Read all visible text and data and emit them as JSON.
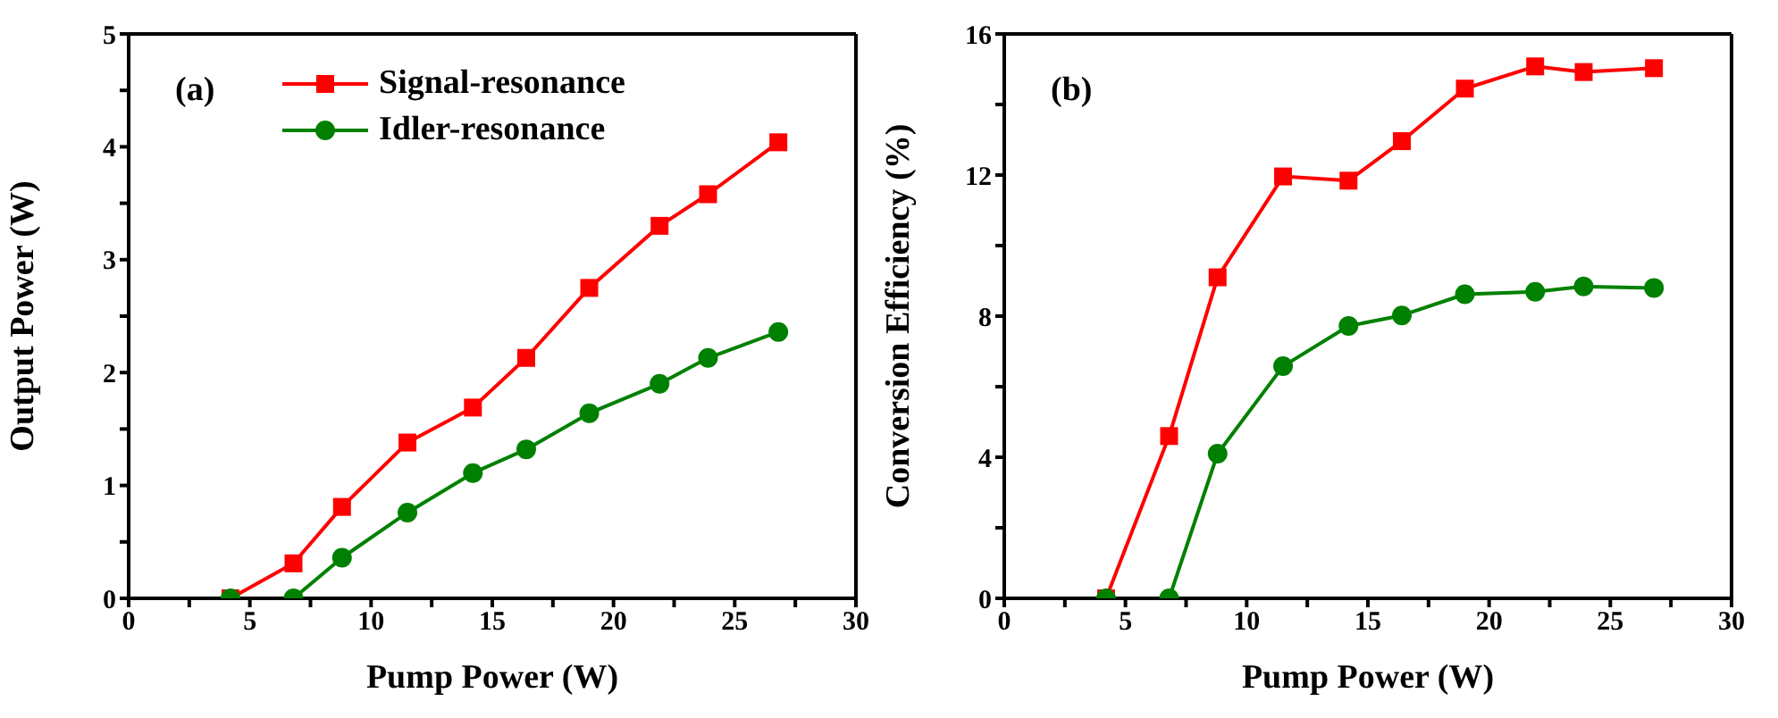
{
  "chart_data": [
    {
      "type": "line",
      "annotations": [
        "(a)"
      ],
      "xlabel": "Pump Power (W)",
      "ylabel": "Output Power (W)",
      "xlim": [
        0,
        30
      ],
      "ylim": [
        0,
        5
      ],
      "xticks": [
        0,
        {
          "value": 2.5,
          "label": null
        },
        5,
        {
          "value": 7.5,
          "label": null
        },
        10,
        {
          "value": 12.5,
          "label": null
        },
        15,
        {
          "value": 17.5,
          "label": null
        },
        20,
        {
          "value": 22.5,
          "label": null
        },
        25,
        {
          "value": 27.5,
          "label": null
        },
        30
      ],
      "yticks": [
        0,
        {
          "value": 0.5,
          "label": null
        },
        1,
        {
          "value": 1.5,
          "label": null
        },
        2,
        {
          "value": 2.5,
          "label": null
        },
        3,
        {
          "value": 3.5,
          "label": null
        },
        4,
        {
          "value": 4.5,
          "label": null
        },
        5
      ],
      "x": [
        4.2,
        6.8,
        8.8,
        11.5,
        14.2,
        16.4,
        19.0,
        21.9,
        23.9,
        26.8
      ],
      "legend": "top",
      "line_style": "solid",
      "series": [
        {
          "name": "Signal-resonance",
          "color": "#ff0000",
          "marker": "square",
          "values": [
            0,
            0.31,
            0.81,
            1.38,
            1.69,
            2.13,
            2.75,
            3.3,
            3.58,
            4.04
          ]
        },
        {
          "name": "Idler-resonance",
          "color": "#008000",
          "marker": "circle",
          "values": [
            0,
            0,
            0.36,
            0.76,
            1.11,
            1.32,
            1.64,
            1.9,
            2.13,
            2.36
          ]
        }
      ]
    },
    {
      "type": "line",
      "annotations": [
        "(b)"
      ],
      "xlabel": "Pump Power (W)",
      "ylabel": "Conversion Efficiency (%)",
      "xlim": [
        0,
        30
      ],
      "ylim": [
        0,
        16
      ],
      "xticks": [
        0,
        {
          "value": 2.5,
          "label": null
        },
        5,
        {
          "value": 7.5,
          "label": null
        },
        10,
        {
          "value": 12.5,
          "label": null
        },
        15,
        {
          "value": 17.5,
          "label": null
        },
        20,
        {
          "value": 22.5,
          "label": null
        },
        25,
        {
          "value": 27.5,
          "label": null
        },
        30
      ],
      "yticks": [
        0,
        {
          "value": 2,
          "label": null
        },
        4,
        {
          "value": 6,
          "label": null
        },
        8,
        {
          "value": 10,
          "label": null
        },
        12,
        {
          "value": 14,
          "label": null
        },
        16
      ],
      "x": [
        4.2,
        6.8,
        8.8,
        11.5,
        14.2,
        16.4,
        19.0,
        21.9,
        23.9,
        26.8
      ],
      "legend": false,
      "line_style": "solid",
      "series": [
        {
          "color": "#ff0000",
          "marker": "square",
          "values": [
            0,
            4.6,
            9.1,
            11.96,
            11.84,
            12.96,
            14.45,
            15.08,
            14.92,
            15.03
          ]
        },
        {
          "color": "#008000",
          "marker": "circle",
          "values": [
            0,
            0,
            4.1,
            6.58,
            7.72,
            8.02,
            8.62,
            8.69,
            8.84,
            8.8
          ]
        }
      ]
    }
  ]
}
